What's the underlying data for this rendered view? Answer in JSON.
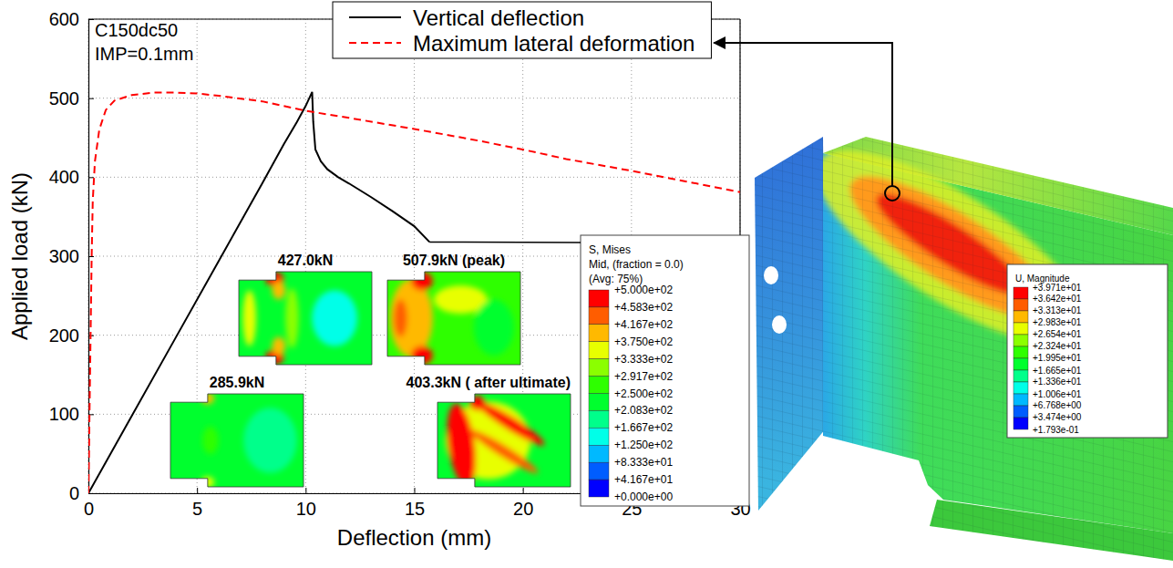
{
  "chart_data": {
    "type": "line",
    "x_label": "Deflection (mm)",
    "y_label": "Applied load (kN)",
    "annotations": [
      "C150dc50",
      "IMP=0.1mm"
    ],
    "xlim": [
      0,
      30
    ],
    "ylim": [
      0,
      600
    ],
    "xticks": [
      0,
      5,
      10,
      15,
      20,
      25,
      30
    ],
    "yticks": [
      0,
      100,
      200,
      300,
      400,
      500,
      600
    ],
    "grid": true,
    "legend": "top",
    "series": [
      {
        "name": "Vertical deflection",
        "color": "#000000",
        "line_style": "solid",
        "x": [
          0,
          2,
          4,
          6,
          8,
          9,
          9.6,
          10,
          10.3,
          10.35,
          10.45,
          10.7,
          11,
          11.5,
          12,
          13,
          14,
          15,
          15.7
        ],
        "values": [
          0,
          98,
          196,
          294,
          392,
          442,
          470,
          490,
          507.9,
          470,
          435,
          420,
          410,
          400,
          392,
          375,
          357,
          338,
          318
        ]
      },
      {
        "name": "Maximum lateral deformation",
        "color": "#ff0000",
        "line_style": "dashed",
        "x": [
          0,
          0.05,
          0.1,
          0.15,
          0.2,
          0.3,
          0.5,
          0.8,
          1.2,
          2,
          3,
          4,
          5,
          6,
          8,
          10,
          12,
          15,
          18,
          20,
          22,
          25,
          28,
          30
        ],
        "values": [
          0,
          100,
          200,
          300,
          370,
          420,
          460,
          485,
          497,
          504,
          507,
          507,
          506,
          503,
          496,
          484,
          475,
          461,
          446,
          435,
          423,
          408,
          392,
          381
        ]
      }
    ],
    "insets": [
      {
        "label": "427.0kN"
      },
      {
        "label": "507.9kN (peak)"
      },
      {
        "label": "285.9kN"
      },
      {
        "label": "403.3kN ( after ultimate)"
      }
    ],
    "color_bars": [
      {
        "title": [
          "S, Mises",
          "Mid, (fraction = 0.0)",
          "(Avg: 75%)"
        ],
        "range": [
          0,
          500
        ],
        "ticks": [
          {
            "value": 500,
            "label": "+5.000e+02"
          },
          {
            "value": 458.3,
            "label": "+4.583e+02"
          },
          {
            "value": 416.7,
            "label": "+4.167e+02"
          },
          {
            "value": 375,
            "label": "+3.750e+02"
          },
          {
            "value": 333.3,
            "label": "+3.333e+02"
          },
          {
            "value": 291.7,
            "label": "+2.917e+02"
          },
          {
            "value": 250,
            "label": "+2.500e+02"
          },
          {
            "value": 208.3,
            "label": "+2.083e+02"
          },
          {
            "value": 166.7,
            "label": "+1.667e+02"
          },
          {
            "value": 125,
            "label": "+1.250e+02"
          },
          {
            "value": 83.33,
            "label": "+8.333e+01"
          },
          {
            "value": 41.67,
            "label": "+4.167e+01"
          },
          {
            "value": 0,
            "label": "+0.000e+00"
          }
        ]
      },
      {
        "title": [
          "U, Magnitude"
        ],
        "range": [
          0.1793,
          39.71
        ],
        "ticks": [
          {
            "value": 39.71,
            "label": "+3.971e+01"
          },
          {
            "value": 36.42,
            "label": "+3.642e+01"
          },
          {
            "value": 33.13,
            "label": "+3.313e+01"
          },
          {
            "value": 29.83,
            "label": "+2.983e+01"
          },
          {
            "value": 26.54,
            "label": "+2.654e+01"
          },
          {
            "value": 23.24,
            "label": "+2.324e+01"
          },
          {
            "value": 19.95,
            "label": "+1.995e+01"
          },
          {
            "value": 16.65,
            "label": "+1.665e+01"
          },
          {
            "value": 13.36,
            "label": "+1.336e+01"
          },
          {
            "value": 10.06,
            "label": "+1.006e+01"
          },
          {
            "value": 6.768,
            "label": "+6.768e+00"
          },
          {
            "value": 3.474,
            "label": "+3.474e+00"
          },
          {
            "value": 0.1793,
            "label": "+1.793e-01"
          }
        ]
      }
    ]
  }
}
